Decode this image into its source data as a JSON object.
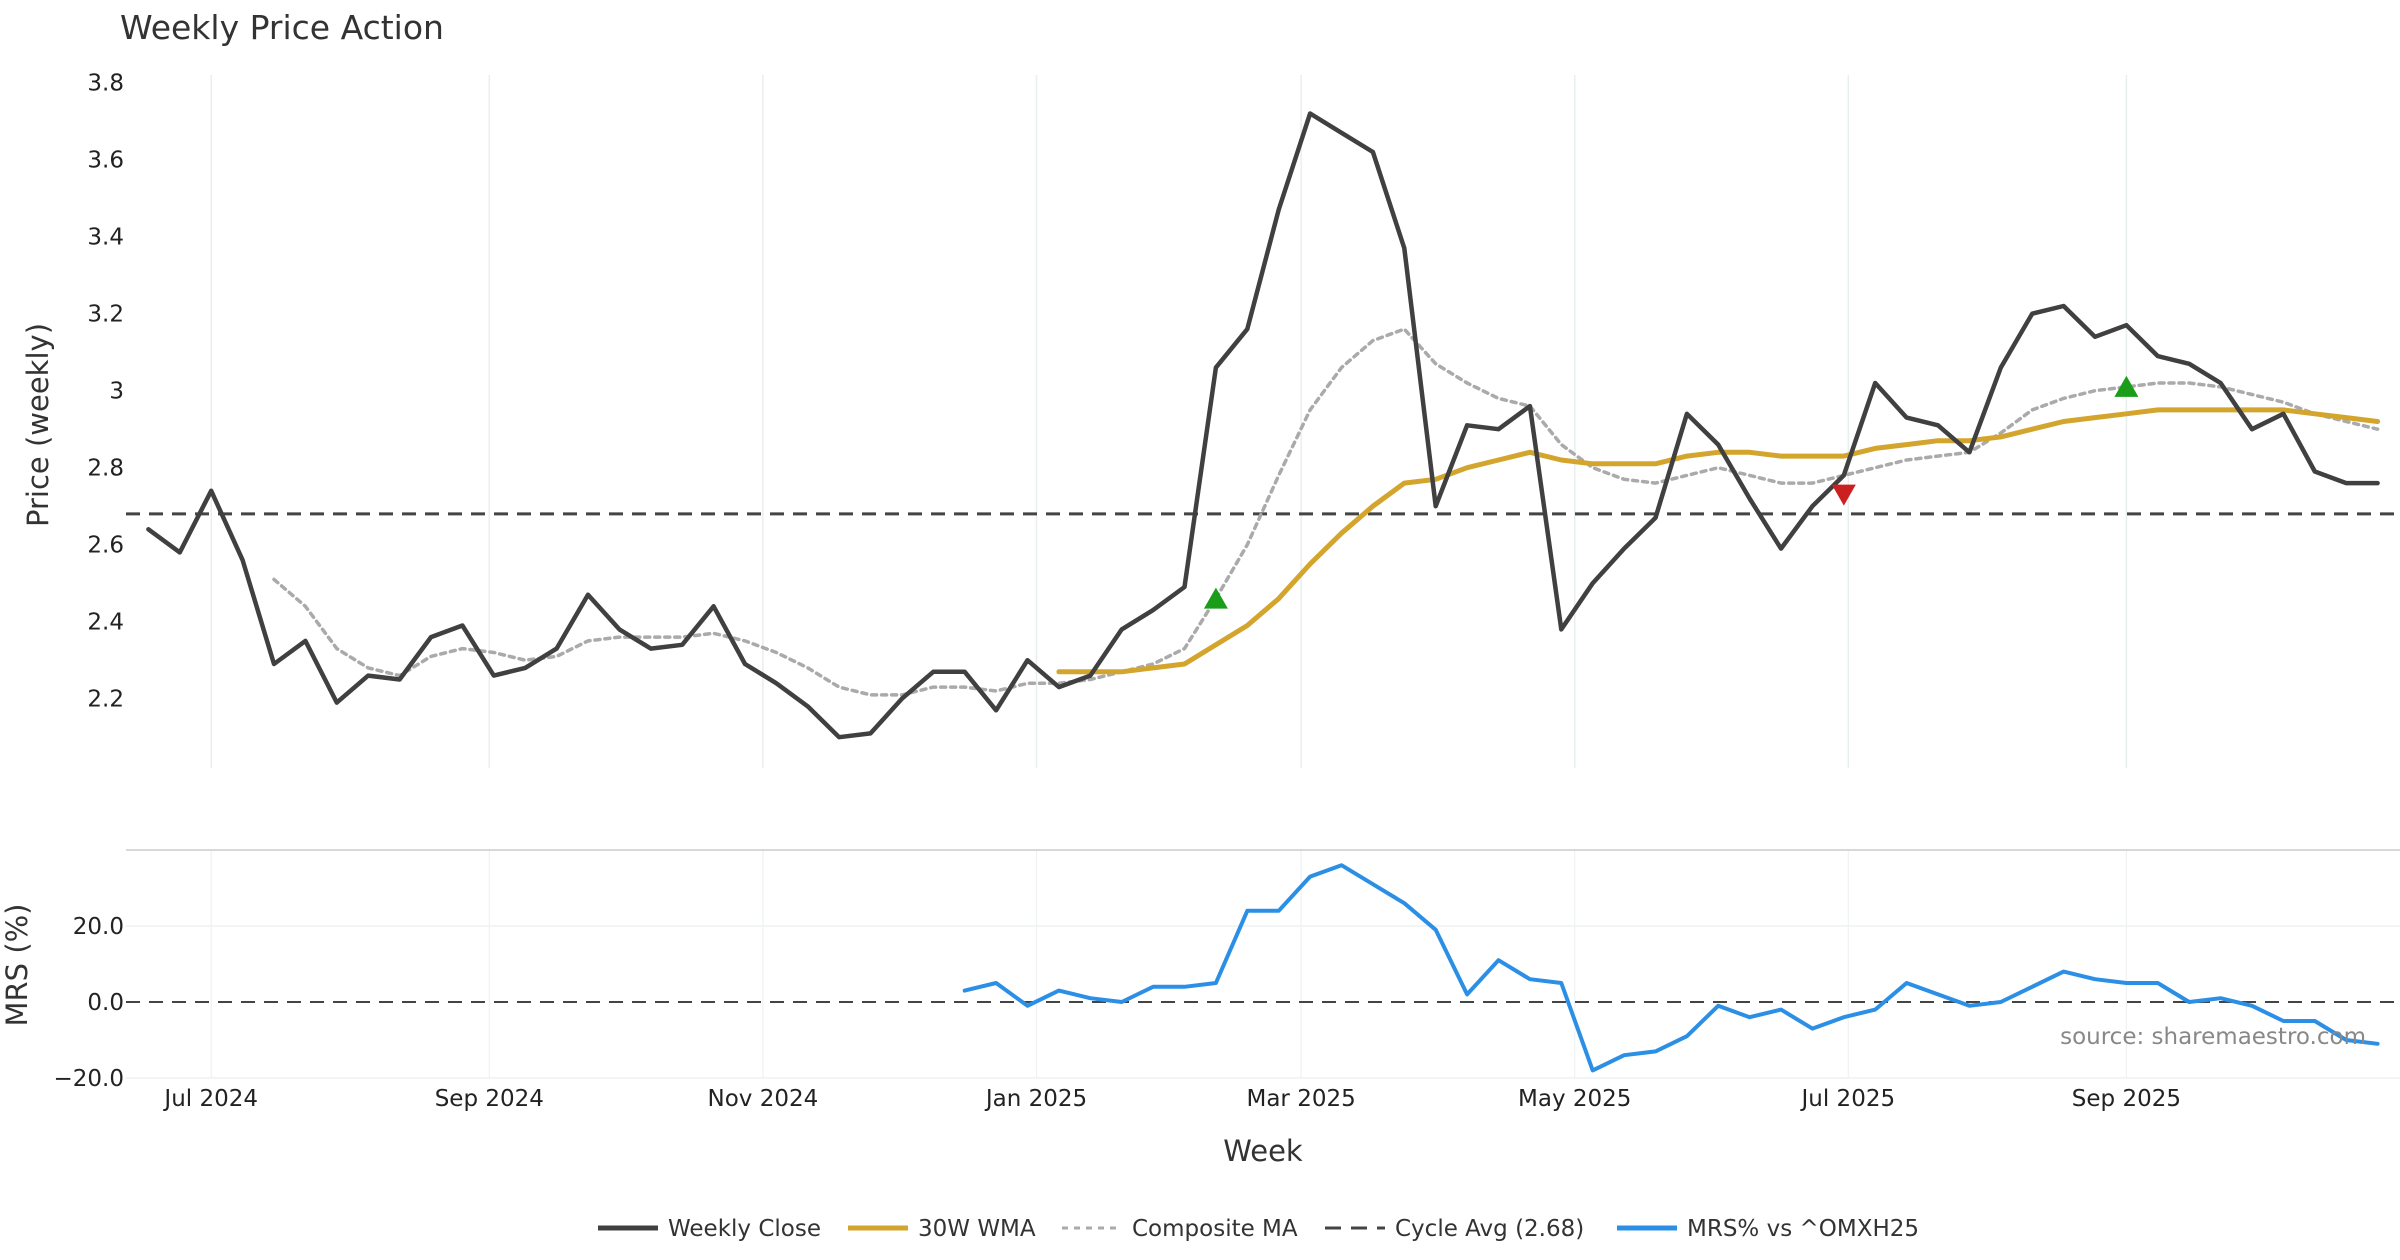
{
  "chart_data": {
    "type": "line",
    "title": "Weekly Price Action",
    "xlabel": "Week",
    "source": "source: sharemaestro.com",
    "grid": true,
    "x": [
      "2024-06-17",
      "2024-06-24",
      "2024-07-01",
      "2024-07-08",
      "2024-07-15",
      "2024-07-22",
      "2024-07-29",
      "2024-08-05",
      "2024-08-12",
      "2024-08-19",
      "2024-08-26",
      "2024-09-02",
      "2024-09-09",
      "2024-09-16",
      "2024-09-23",
      "2024-09-30",
      "2024-10-07",
      "2024-10-14",
      "2024-10-21",
      "2024-10-28",
      "2024-11-04",
      "2024-11-11",
      "2024-11-18",
      "2024-11-25",
      "2024-12-02",
      "2024-12-09",
      "2024-12-16",
      "2024-12-23",
      "2024-12-30",
      "2025-01-06",
      "2025-01-13",
      "2025-01-20",
      "2025-01-27",
      "2025-02-03",
      "2025-02-10",
      "2025-02-17",
      "2025-02-24",
      "2025-03-03",
      "2025-03-10",
      "2025-03-17",
      "2025-03-24",
      "2025-03-31",
      "2025-04-07",
      "2025-04-14",
      "2025-04-21",
      "2025-04-28",
      "2025-05-05",
      "2025-05-12",
      "2025-05-19",
      "2025-05-26",
      "2025-06-02",
      "2025-06-09",
      "2025-06-16",
      "2025-06-23",
      "2025-06-30",
      "2025-07-07",
      "2025-07-14",
      "2025-07-21",
      "2025-07-28",
      "2025-08-04",
      "2025-08-11",
      "2025-08-18",
      "2025-08-25",
      "2025-09-01",
      "2025-09-08",
      "2025-09-15",
      "2025-09-22",
      "2025-09-29",
      "2025-10-06",
      "2025-10-13",
      "2025-10-20",
      "2025-10-27"
    ],
    "price_panel": {
      "ylabel": "Price (weekly)",
      "yticks": [
        2.2,
        2.4,
        2.6,
        2.8,
        3,
        3.2,
        3.4,
        3.6,
        3.8
      ],
      "ytick_labels": [
        "2.2",
        "2.4",
        "2.6",
        "2.8",
        "3",
        "3.2",
        "3.4",
        "3.6",
        "3.8"
      ],
      "ylim": [
        2.02,
        3.82
      ]
    },
    "mrs_panel": {
      "ylabel": "MRS (%)",
      "yticks": [
        -20,
        0,
        20
      ],
      "ytick_labels": [
        "−20.0",
        "0.0",
        "20.0"
      ],
      "ylim": [
        -20,
        40
      ]
    },
    "x_ticks": [
      {
        "label": "Jul 2024",
        "date": "2024-07-01"
      },
      {
        "label": "Sep 2024",
        "date": "2024-09-01"
      },
      {
        "label": "Nov 2024",
        "date": "2024-11-01"
      },
      {
        "label": "Jan 2025",
        "date": "2025-01-01"
      },
      {
        "label": "Mar 2025",
        "date": "2025-03-01"
      },
      {
        "label": "May 2025",
        "date": "2025-05-01"
      },
      {
        "label": "Jul 2025",
        "date": "2025-07-01"
      },
      {
        "label": "Sep 2025",
        "date": "2025-09-01"
      }
    ],
    "series": [
      {
        "name": "Weekly Close",
        "panel": "price",
        "color": "#404040",
        "style": "solid",
        "values": [
          2.64,
          2.58,
          2.74,
          2.56,
          2.29,
          2.35,
          2.19,
          2.26,
          2.25,
          2.36,
          2.39,
          2.26,
          2.28,
          2.33,
          2.47,
          2.38,
          2.33,
          2.34,
          2.44,
          2.29,
          2.24,
          2.18,
          2.1,
          2.11,
          2.2,
          2.27,
          2.27,
          2.17,
          2.3,
          2.23,
          2.26,
          2.38,
          2.43,
          2.49,
          3.06,
          3.16,
          3.47,
          3.72,
          3.67,
          3.62,
          3.37,
          2.7,
          2.91,
          2.9,
          2.96,
          2.38,
          2.5,
          2.59,
          2.67,
          2.94,
          2.86,
          2.72,
          2.59,
          2.7,
          2.78,
          3.02,
          2.93,
          2.91,
          2.84,
          3.06,
          3.2,
          3.22,
          3.14,
          3.17,
          3.09,
          3.07,
          3.02,
          2.9,
          2.94,
          2.79,
          2.76,
          2.76
        ]
      },
      {
        "name": "30W WMA",
        "panel": "price",
        "color": "#d4a52c",
        "style": "solid",
        "values": [
          null,
          null,
          null,
          null,
          null,
          null,
          null,
          null,
          null,
          null,
          null,
          null,
          null,
          null,
          null,
          null,
          null,
          null,
          null,
          null,
          null,
          null,
          null,
          null,
          null,
          null,
          null,
          null,
          null,
          2.27,
          2.27,
          2.27,
          2.28,
          2.29,
          2.34,
          2.39,
          2.46,
          2.55,
          2.63,
          2.7,
          2.76,
          2.77,
          2.8,
          2.82,
          2.84,
          2.82,
          2.81,
          2.81,
          2.81,
          2.83,
          2.84,
          2.84,
          2.83,
          2.83,
          2.83,
          2.85,
          2.86,
          2.87,
          2.87,
          2.88,
          2.9,
          2.92,
          2.93,
          2.94,
          2.95,
          2.95,
          2.95,
          2.95,
          2.95,
          2.94,
          2.93,
          2.92
        ]
      },
      {
        "name": "Composite MA",
        "panel": "price",
        "color": "#aaaaaa",
        "style": "dotted",
        "values": [
          null,
          null,
          null,
          null,
          2.51,
          2.44,
          2.33,
          2.28,
          2.26,
          2.31,
          2.33,
          2.32,
          2.3,
          2.31,
          2.35,
          2.36,
          2.36,
          2.36,
          2.37,
          2.35,
          2.32,
          2.28,
          2.23,
          2.21,
          2.21,
          2.23,
          2.23,
          2.22,
          2.24,
          2.24,
          2.25,
          2.27,
          2.29,
          2.33,
          2.46,
          2.6,
          2.78,
          2.95,
          3.06,
          3.13,
          3.16,
          3.07,
          3.02,
          2.98,
          2.96,
          2.86,
          2.8,
          2.77,
          2.76,
          2.78,
          2.8,
          2.78,
          2.76,
          2.76,
          2.78,
          2.8,
          2.82,
          2.83,
          2.84,
          2.89,
          2.95,
          2.98,
          3.0,
          3.01,
          3.02,
          3.02,
          3.01,
          2.99,
          2.97,
          2.94,
          2.92,
          2.9
        ]
      },
      {
        "name": "Cycle Avg (2.68)",
        "panel": "price",
        "color": "#444444",
        "style": "dashed",
        "value": 2.68
      },
      {
        "name": "MRS% vs ^OMXH25",
        "panel": "mrs",
        "color": "#2b8fe6",
        "style": "solid",
        "values": [
          null,
          null,
          null,
          null,
          null,
          null,
          null,
          null,
          null,
          null,
          null,
          null,
          null,
          null,
          null,
          null,
          null,
          null,
          null,
          null,
          null,
          null,
          null,
          null,
          null,
          null,
          3,
          5,
          -1,
          3,
          1,
          0,
          4,
          4,
          5,
          24,
          24,
          33,
          36,
          31,
          26,
          19,
          2,
          11,
          6,
          5,
          -18,
          -14,
          -13,
          -9,
          -1,
          -4,
          -2,
          -7,
          -4,
          -2,
          5,
          2,
          -1,
          0,
          4,
          8,
          6,
          5,
          5,
          0,
          1,
          -1,
          -5,
          -5,
          -10,
          -11
        ]
      }
    ],
    "signals": [
      {
        "type": "buy",
        "date": "2025-02-10",
        "value": 2.46,
        "color": "#1a9e1a"
      },
      {
        "type": "sell",
        "date": "2025-06-30",
        "value": 2.73,
        "color": "#cc1f1f"
      },
      {
        "type": "buy",
        "date": "2025-09-01",
        "value": 3.01,
        "color": "#1a9e1a"
      }
    ],
    "legend": {
      "placement": "bottom-center",
      "entries": [
        {
          "label": "Weekly Close",
          "color": "#404040",
          "style": "solid"
        },
        {
          "label": "30W WMA",
          "color": "#d4a52c",
          "style": "solid"
        },
        {
          "label": "Composite MA",
          "color": "#aaaaaa",
          "style": "dotted"
        },
        {
          "label": "Cycle Avg (2.68)",
          "color": "#444444",
          "style": "dashed"
        },
        {
          "label": "MRS% vs ^OMXH25",
          "color": "#2b8fe6",
          "style": "solid"
        }
      ]
    }
  }
}
